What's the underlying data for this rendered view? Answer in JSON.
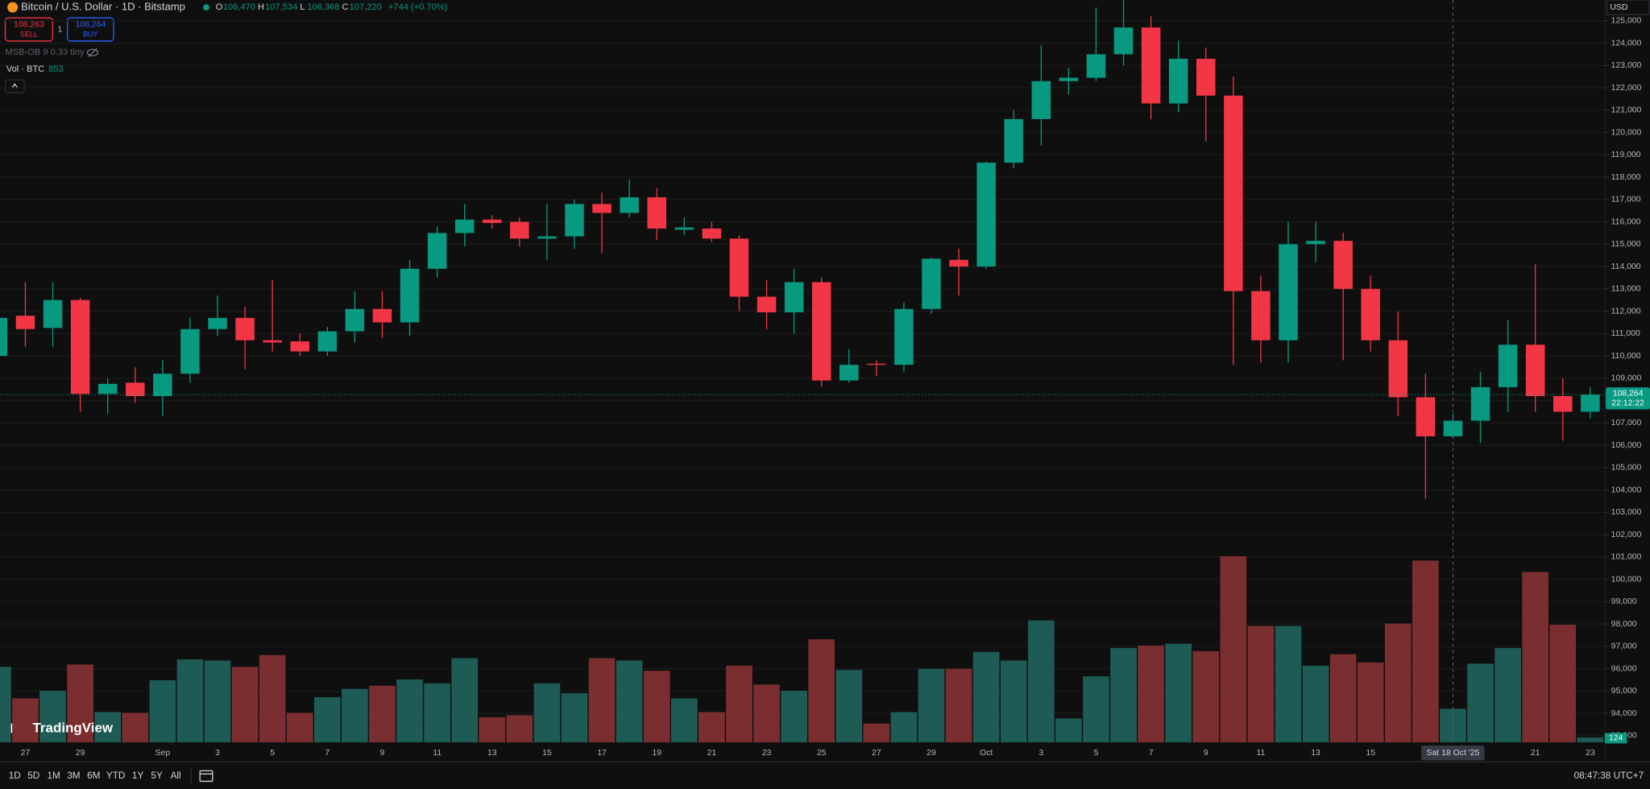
{
  "chart_data": {
    "type": "candlestick",
    "title": "Bitcoin / U.S. Dollar · 1D · Bitstamp",
    "ohlc_header": [
      {
        "key": "O",
        "value": "106,470"
      },
      {
        "key": "H",
        "value": "107,534"
      },
      {
        "key": "L",
        "value": "106,368"
      },
      {
        "key": "C",
        "value": "107,220"
      }
    ],
    "change": "+744 (+0.70%)",
    "sell": {
      "price": "108,263",
      "label": "SELL"
    },
    "spread": "1",
    "buy": {
      "price": "108,264",
      "label": "BUY"
    },
    "indicator": "MSB-OB 9 0.33 tiny",
    "volume_label": "Vol · BTC",
    "currency": "USD",
    "categories": [
      null,
      "27",
      null,
      "29",
      null,
      null,
      "Sep",
      null,
      "3",
      null,
      "5",
      null,
      "7",
      null,
      "9",
      null,
      "11",
      null,
      "13",
      null,
      "15",
      null,
      "17",
      null,
      "19",
      null,
      "21",
      null,
      "23",
      null,
      "25",
      null,
      "27",
      null,
      "29",
      null,
      "Oct",
      null,
      "3",
      null,
      "5",
      null,
      "7",
      null,
      "9",
      null,
      "11",
      null,
      "13",
      null,
      "15",
      null,
      null,
      null,
      null,
      null,
      "21",
      null,
      "23"
    ],
    "open": [
      110000,
      111800,
      111250,
      112500,
      108300,
      108800,
      108200,
      109200,
      111200,
      111700,
      110700,
      110650,
      110200,
      111100,
      112100,
      111500,
      113900,
      115500,
      116100,
      116000,
      115250,
      115350,
      116800,
      116400,
      117100,
      115650,
      115700,
      115250,
      112650,
      111950,
      113300,
      108900,
      109650,
      109600,
      112100,
      114300,
      114000,
      118650,
      120600,
      122300,
      122450,
      123500,
      124700,
      121300,
      123300,
      121650,
      112900,
      110700,
      115000,
      115150,
      113000,
      110700,
      108150,
      106400,
      107100,
      108600,
      110500,
      108200,
      107500
    ],
    "high": [
      111900,
      113300,
      113300,
      112600,
      109000,
      109500,
      109800,
      111700,
      112700,
      112200,
      113400,
      111000,
      111300,
      112900,
      112900,
      114300,
      115800,
      116800,
      116300,
      116200,
      116800,
      117000,
      117300,
      117900,
      117500,
      116200,
      116000,
      115400,
      113400,
      113900,
      113500,
      110300,
      109800,
      112400,
      114400,
      114800,
      118700,
      121000,
      123900,
      122900,
      125600,
      126100,
      125200,
      124100,
      123800,
      122500,
      113600,
      116000,
      116000,
      115500,
      113600,
      112000,
      109200,
      107400,
      109300,
      111600,
      114100,
      109000,
      108600
    ],
    "low": [
      109900,
      110400,
      110400,
      107500,
      107400,
      107900,
      107300,
      108800,
      110900,
      109400,
      110200,
      110000,
      110000,
      110600,
      110800,
      110900,
      113500,
      114900,
      115700,
      114900,
      114300,
      114800,
      114600,
      116200,
      115200,
      115400,
      115100,
      112000,
      111200,
      111000,
      108600,
      108800,
      109100,
      109300,
      111900,
      112700,
      113900,
      118400,
      119400,
      121700,
      122300,
      123000,
      120600,
      120900,
      119600,
      109600,
      109700,
      109700,
      114200,
      109800,
      110200,
      107300,
      103600,
      106300,
      106100,
      107500,
      107500,
      106200,
      107200
    ],
    "close": [
      111700,
      111200,
      112500,
      108300,
      108750,
      108200,
      109200,
      111200,
      111700,
      110700,
      110600,
      110200,
      111100,
      112100,
      111500,
      113900,
      115500,
      116100,
      115950,
      115250,
      115350,
      116800,
      116400,
      117100,
      115700,
      115750,
      115250,
      112650,
      111950,
      113300,
      108900,
      109600,
      109600,
      112100,
      114350,
      114000,
      118650,
      120600,
      122300,
      122450,
      123500,
      124700,
      121300,
      123300,
      121650,
      112900,
      110700,
      115000,
      115150,
      113000,
      110700,
      108150,
      106400,
      107100,
      108600,
      110500,
      108200,
      107500,
      108264
    ],
    "volume": [
      1920,
      1120,
      1310,
      1980,
      770,
      750,
      1580,
      2110,
      2080,
      1920,
      2220,
      750,
      1150,
      1360,
      1440,
      1600,
      1500,
      2140,
      640,
      690,
      1500,
      1250,
      2140,
      2080,
      1820,
      1120,
      770,
      1950,
      1470,
      1310,
      2620,
      1840,
      480,
      770,
      1870,
      1870,
      2300,
      2080,
      3100,
      610,
      1680,
      2400,
      2460,
      2510,
      2320,
      4730,
      2960,
      2960,
      1950,
      2240,
      2030,
      3020,
      4620,
      853,
      2000,
      2400,
      4330,
      2990,
      124
    ],
    "up_color": "#089981",
    "down_color": "#f23645",
    "volume_up_color": "#1e5b55",
    "volume_down_color": "#7a2e30",
    "ylim": [
      92700,
      125930
    ],
    "yticks": [
      {
        "value": 93000,
        "label": "93,000"
      },
      {
        "value": 94000,
        "label": "94,000"
      },
      {
        "value": 95000,
        "label": "95,000"
      },
      {
        "value": 96000,
        "label": "96,000"
      },
      {
        "value": 97000,
        "label": "97,000"
      },
      {
        "value": 98000,
        "label": "98,000"
      },
      {
        "value": 99000,
        "label": "99,000"
      },
      {
        "value": 100000,
        "label": "100,000"
      },
      {
        "value": 101000,
        "label": "101,000"
      },
      {
        "value": 102000,
        "label": "102,000"
      },
      {
        "value": 103000,
        "label": "103,000"
      },
      {
        "value": 104000,
        "label": "104,000"
      },
      {
        "value": 105000,
        "label": "105,000"
      },
      {
        "value": 106000,
        "label": "106,000"
      },
      {
        "value": 107000,
        "label": "107,000"
      },
      {
        "value": 108000,
        "label": "108,000"
      },
      {
        "value": 109000,
        "label": "109,000"
      },
      {
        "value": 110000,
        "label": "110,000"
      },
      {
        "value": 111000,
        "label": "111,000"
      },
      {
        "value": 112000,
        "label": "112,000"
      },
      {
        "value": 113000,
        "label": "113,000"
      },
      {
        "value": 114000,
        "label": "114,000"
      },
      {
        "value": 115000,
        "label": "115,000"
      },
      {
        "value": 116000,
        "label": "116,000"
      },
      {
        "value": 117000,
        "label": "117,000"
      },
      {
        "value": 118000,
        "label": "118,000"
      },
      {
        "value": 119000,
        "label": "119,000"
      },
      {
        "value": 120000,
        "label": "120,000"
      },
      {
        "value": 121000,
        "label": "121,000"
      },
      {
        "value": 122000,
        "label": "122,000"
      },
      {
        "value": 123000,
        "label": "123,000"
      },
      {
        "value": 124000,
        "label": "124,000"
      },
      {
        "value": 125000,
        "label": "125,000"
      }
    ],
    "grid": true,
    "last_price": {
      "value": 108264,
      "label": "108,264",
      "countdown": "22:12:22"
    },
    "crosshair": {
      "index": 53,
      "label": "Sat 18 Oct '25"
    }
  },
  "brand": "TradingView",
  "toolbar": {
    "ranges": [
      "1D",
      "5D",
      "1M",
      "3M",
      "6M",
      "YTD",
      "1Y",
      "5Y",
      "All"
    ],
    "clock": "08:47:38 UTC+7"
  }
}
